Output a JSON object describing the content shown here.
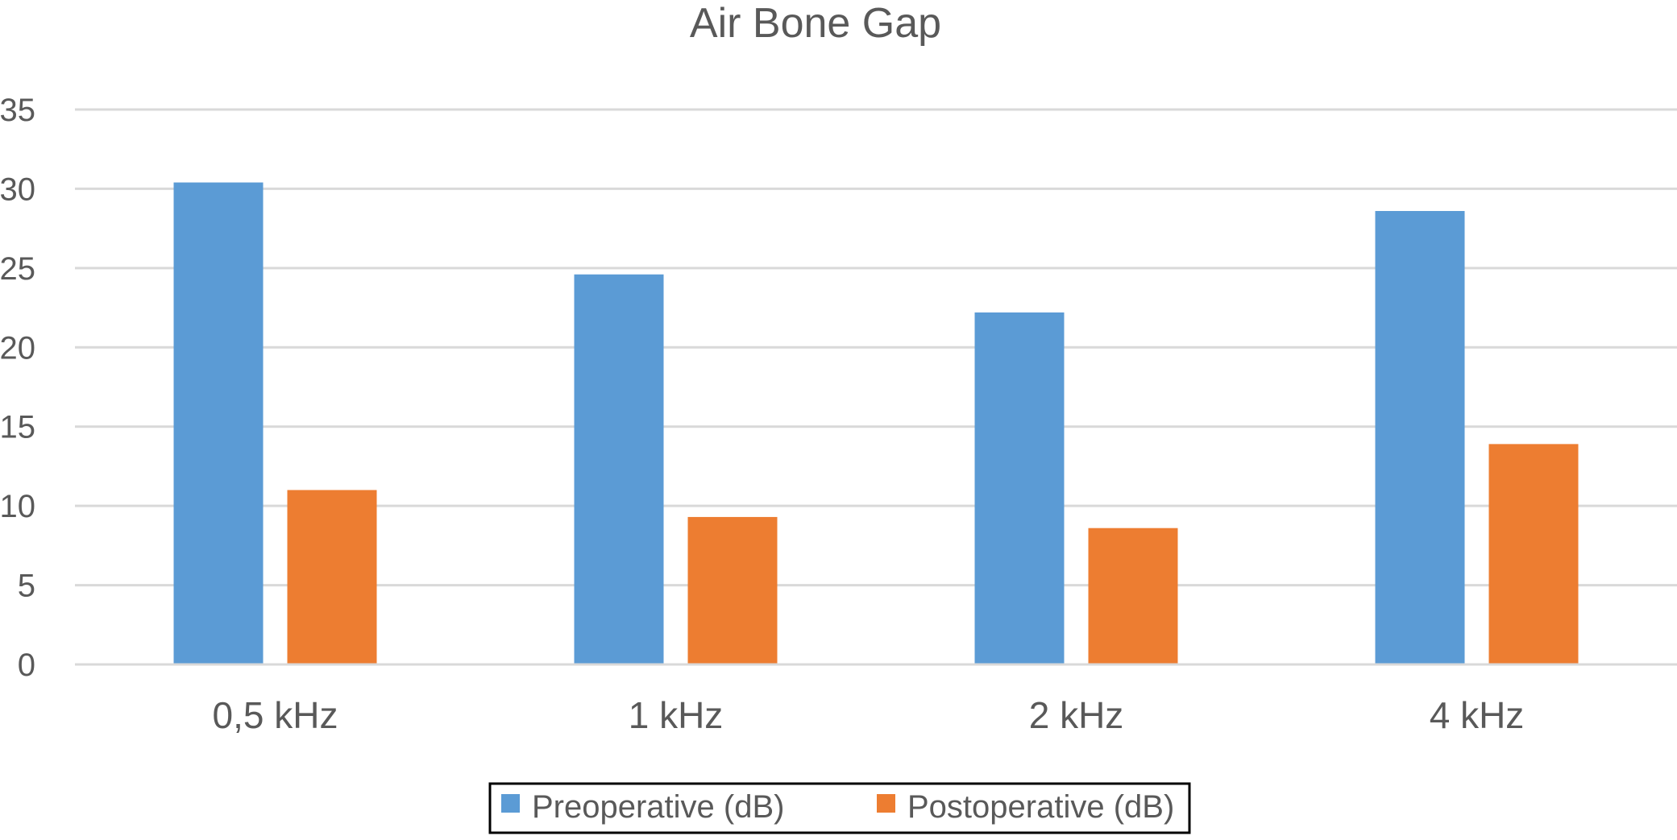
{
  "chart_data": {
    "type": "bar",
    "title": "Air Bone Gap",
    "xlabel": "",
    "ylabel": "",
    "categories": [
      "0,5 kHz",
      "1 kHz",
      "2 kHz",
      "4 kHz"
    ],
    "series": [
      {
        "name": "Preoperative (dB)",
        "color": "#5B9BD5",
        "values": [
          30.4,
          24.6,
          22.2,
          28.6
        ]
      },
      {
        "name": "Postoperative (dB)",
        "color": "#ED7D31",
        "values": [
          11.0,
          9.3,
          8.6,
          13.9
        ]
      }
    ],
    "ylim": [
      0,
      35
    ],
    "yticks": [
      0,
      5,
      10,
      15,
      20,
      25,
      30,
      35
    ],
    "grid": true,
    "legend_position": "bottom"
  }
}
